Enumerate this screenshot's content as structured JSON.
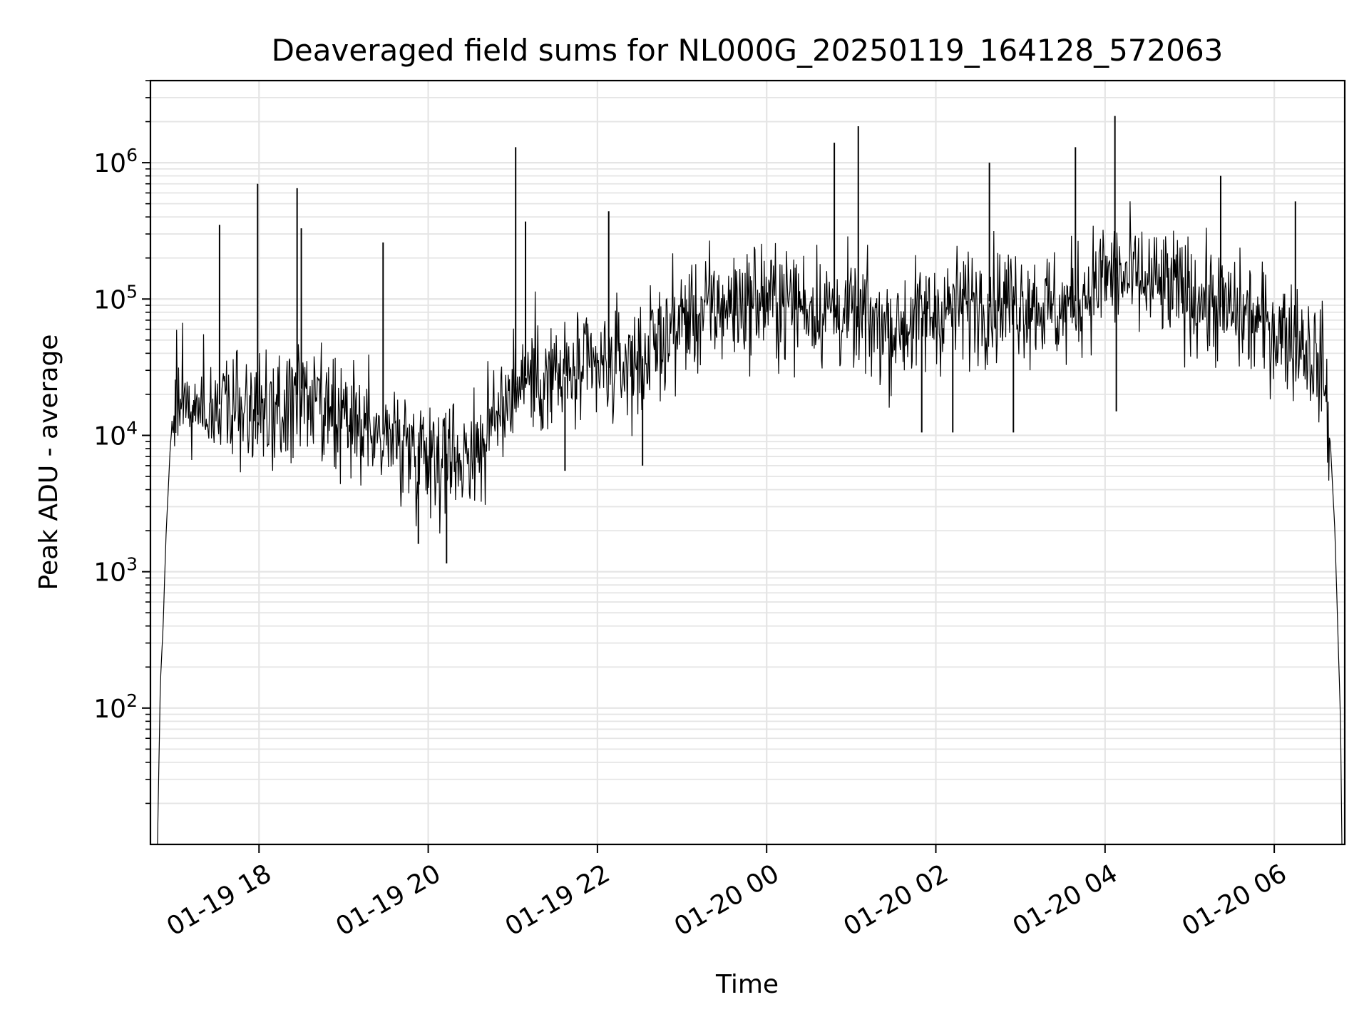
{
  "chart_data": {
    "type": "line",
    "title": "Deaveraged field sums for NL000G_20250119_164128_572063",
    "xlabel": "Time",
    "ylabel": "Peak ADU - average",
    "yscale": "log",
    "ylim": [
      10,
      4000000
    ],
    "xlim": [
      "2025-01-19 16:43",
      "2025-01-20 06:50"
    ],
    "grid": true,
    "line_color": "#000000",
    "grid_color": "#e5e5e5",
    "x_ticks": [
      {
        "t": "2025-01-19 18:00",
        "label": "01-19 18"
      },
      {
        "t": "2025-01-19 20:00",
        "label": "01-19 20"
      },
      {
        "t": "2025-01-19 22:00",
        "label": "01-19 22"
      },
      {
        "t": "2025-01-20 00:00",
        "label": "01-20 00"
      },
      {
        "t": "2025-01-20 02:00",
        "label": "01-20 02"
      },
      {
        "t": "2025-01-20 04:00",
        "label": "01-20 04"
      },
      {
        "t": "2025-01-20 06:00",
        "label": "01-20 06"
      }
    ],
    "y_ticks": [
      {
        "value": 100,
        "base": "10",
        "exp": "2"
      },
      {
        "value": 1000,
        "base": "10",
        "exp": "3"
      },
      {
        "value": 10000,
        "base": "10",
        "exp": "4"
      },
      {
        "value": 100000,
        "base": "10",
        "exp": "5"
      },
      {
        "value": 1000000,
        "base": "10",
        "exp": "6"
      }
    ],
    "series": [
      {
        "points": [
          [
            "2025-01-19 16:48",
            10
          ],
          [
            "2025-01-19 16:50",
            150
          ],
          [
            "2025-01-19 16:52",
            400
          ],
          [
            "2025-01-19 16:54",
            1800
          ],
          [
            "2025-01-19 16:57",
            8000
          ],
          [
            "2025-01-19 17:00",
            20000
          ],
          [
            "2025-01-19 17:10",
            18000
          ],
          [
            "2025-01-19 17:20",
            15000
          ],
          [
            "2025-01-19 17:30",
            17000
          ],
          [
            "2025-01-19 17:45",
            16000
          ],
          [
            "2025-01-19 18:00",
            14000
          ],
          [
            "2025-01-19 18:15",
            13000
          ],
          [
            "2025-01-19 18:30",
            22000
          ],
          [
            "2025-01-19 18:45",
            13000
          ],
          [
            "2025-01-19 19:00",
            12000
          ],
          [
            "2025-01-19 19:20",
            11000
          ],
          [
            "2025-01-19 19:40",
            9000
          ],
          [
            "2025-01-19 20:00",
            8000
          ],
          [
            "2025-01-19 20:20",
            7000
          ],
          [
            "2025-01-19 20:40",
            9000
          ],
          [
            "2025-01-19 20:55",
            20000
          ],
          [
            "2025-01-19 21:10",
            28000
          ],
          [
            "2025-01-19 21:30",
            26000
          ],
          [
            "2025-01-19 22:00",
            30000
          ],
          [
            "2025-01-19 22:30",
            35000
          ],
          [
            "2025-01-19 23:00",
            70000
          ],
          [
            "2025-01-19 23:30",
            90000
          ],
          [
            "2025-01-20 00:00",
            100000
          ],
          [
            "2025-01-20 00:30",
            90000
          ],
          [
            "2025-01-20 01:00",
            75000
          ],
          [
            "2025-01-20 01:30",
            60000
          ],
          [
            "2025-01-20 02:00",
            80000
          ],
          [
            "2025-01-20 02:30",
            95000
          ],
          [
            "2025-01-20 03:00",
            100000
          ],
          [
            "2025-01-20 03:30",
            80000
          ],
          [
            "2025-01-20 04:00",
            150000
          ],
          [
            "2025-01-20 04:30",
            130000
          ],
          [
            "2025-01-20 05:00",
            110000
          ],
          [
            "2025-01-20 05:30",
            80000
          ],
          [
            "2025-01-20 06:00",
            60000
          ],
          [
            "2025-01-20 06:20",
            50000
          ],
          [
            "2025-01-20 06:35",
            30000
          ],
          [
            "2025-01-20 06:40",
            8000
          ],
          [
            "2025-01-20 06:43",
            2000
          ],
          [
            "2025-01-20 06:45",
            400
          ],
          [
            "2025-01-20 06:47",
            80
          ],
          [
            "2025-01-20 06:48",
            10
          ]
        ],
        "spikes": [
          [
            "2025-01-19 17:32",
            350000
          ],
          [
            "2025-01-19 17:59",
            700000
          ],
          [
            "2025-01-19 18:27",
            650000
          ],
          [
            "2025-01-19 18:30",
            330000
          ],
          [
            "2025-01-19 19:28",
            260000
          ],
          [
            "2025-01-19 19:53",
            1600
          ],
          [
            "2025-01-19 20:13",
            1150
          ],
          [
            "2025-01-19 21:02",
            1300000
          ],
          [
            "2025-01-19 21:09",
            370000
          ],
          [
            "2025-01-19 21:37",
            5500
          ],
          [
            "2025-01-19 22:08",
            440000
          ],
          [
            "2025-01-19 22:32",
            6000
          ],
          [
            "2025-01-20 00:48",
            1400000
          ],
          [
            "2025-01-20 01:05",
            1850000
          ],
          [
            "2025-01-20 01:50",
            10500
          ],
          [
            "2025-01-20 02:12",
            10500
          ],
          [
            "2025-01-20 02:38",
            1000000
          ],
          [
            "2025-01-20 02:55",
            10500
          ],
          [
            "2025-01-20 03:39",
            1300000
          ],
          [
            "2025-01-20 04:07",
            2200000
          ],
          [
            "2025-01-20 04:08",
            15000
          ],
          [
            "2025-01-20 05:22",
            800000
          ],
          [
            "2025-01-20 06:15",
            520000
          ]
        ]
      }
    ]
  }
}
